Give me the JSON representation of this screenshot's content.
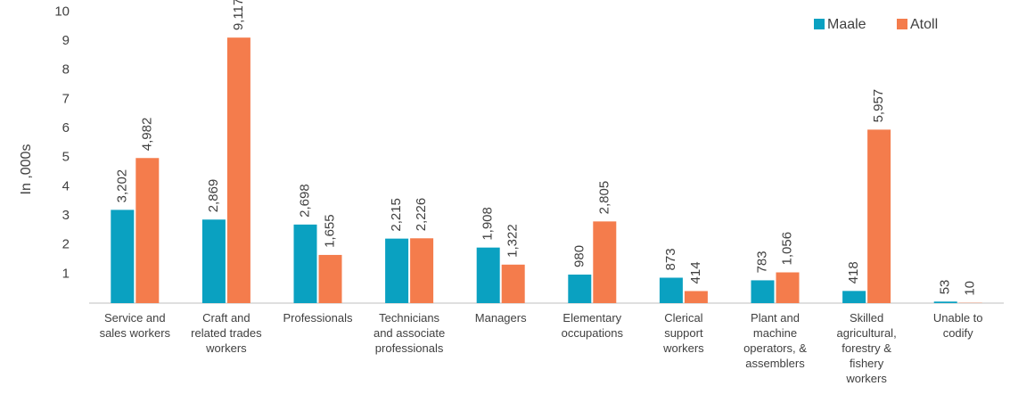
{
  "chart_data": {
    "type": "bar",
    "ylabel": "In ,000s",
    "categories": [
      "Service and\nsales workers",
      "Craft and\nrelated trades\nworkers",
      "Professionals",
      "Technicians\nand associate\nprofessionals",
      "Managers",
      "Elementary\noccupations",
      "Clerical\nsupport\nworkers",
      "Plant and\nmachine\noperators, &\nassemblers",
      "Skilled\nagricultural,\nforestry &\nfishery\nworkers",
      "Unable to\ncodify"
    ],
    "series": [
      {
        "name": "Maale",
        "color": "#0aa1c1",
        "values": [
          3.202,
          2.869,
          2.698,
          2.215,
          1.908,
          0.98,
          0.873,
          0.783,
          0.418,
          0.053
        ],
        "value_labels": [
          "3,202",
          "2,869",
          "2,698",
          "2,215",
          "1,908",
          "980",
          "873",
          "783",
          "418",
          "53"
        ]
      },
      {
        "name": "Atoll",
        "color": "#f47c4c",
        "values": [
          4.982,
          9.117,
          1.655,
          2.226,
          1.322,
          2.805,
          0.414,
          1.056,
          5.957,
          0.01
        ],
        "value_labels": [
          "4,982",
          "9,117",
          "1,655",
          "2,226",
          "1,322",
          "2,805",
          "414",
          "1,056",
          "5,957",
          "10"
        ]
      }
    ],
    "ylim": [
      0,
      10
    ],
    "yticks": [
      1,
      2,
      3,
      4,
      5,
      6,
      7,
      8,
      9,
      10
    ],
    "grid": false,
    "legend": "top-right"
  }
}
